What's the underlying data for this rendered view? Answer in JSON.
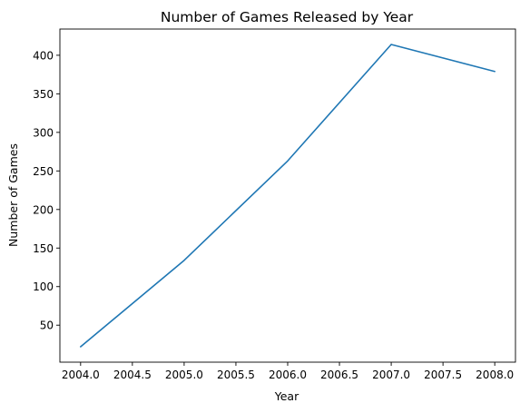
{
  "chart_data": {
    "type": "line",
    "title": "Number of Games Released by Year",
    "xlabel": "Year",
    "ylabel": "Number of Games",
    "x": [
      2004,
      2005,
      2006,
      2007,
      2008
    ],
    "series": [
      {
        "values": [
          22,
          134,
          263,
          414,
          379
        ],
        "color": "#1f77b4"
      }
    ],
    "xlim": [
      2003.8,
      2008.2
    ],
    "ylim": [
      2,
      434
    ],
    "xticks": [
      2004.0,
      2004.5,
      2005.0,
      2005.5,
      2006.0,
      2006.5,
      2007.0,
      2007.5,
      2008.0
    ],
    "xtick_labels": [
      "2004.0",
      "2004.5",
      "2005.0",
      "2005.5",
      "2006.0",
      "2006.5",
      "2007.0",
      "2007.5",
      "2008.0"
    ],
    "yticks": [
      50,
      100,
      150,
      200,
      250,
      300,
      350,
      400
    ],
    "ytick_labels": [
      "50",
      "100",
      "150",
      "200",
      "250",
      "300",
      "350",
      "400"
    ],
    "grid": false,
    "legend": "none"
  }
}
